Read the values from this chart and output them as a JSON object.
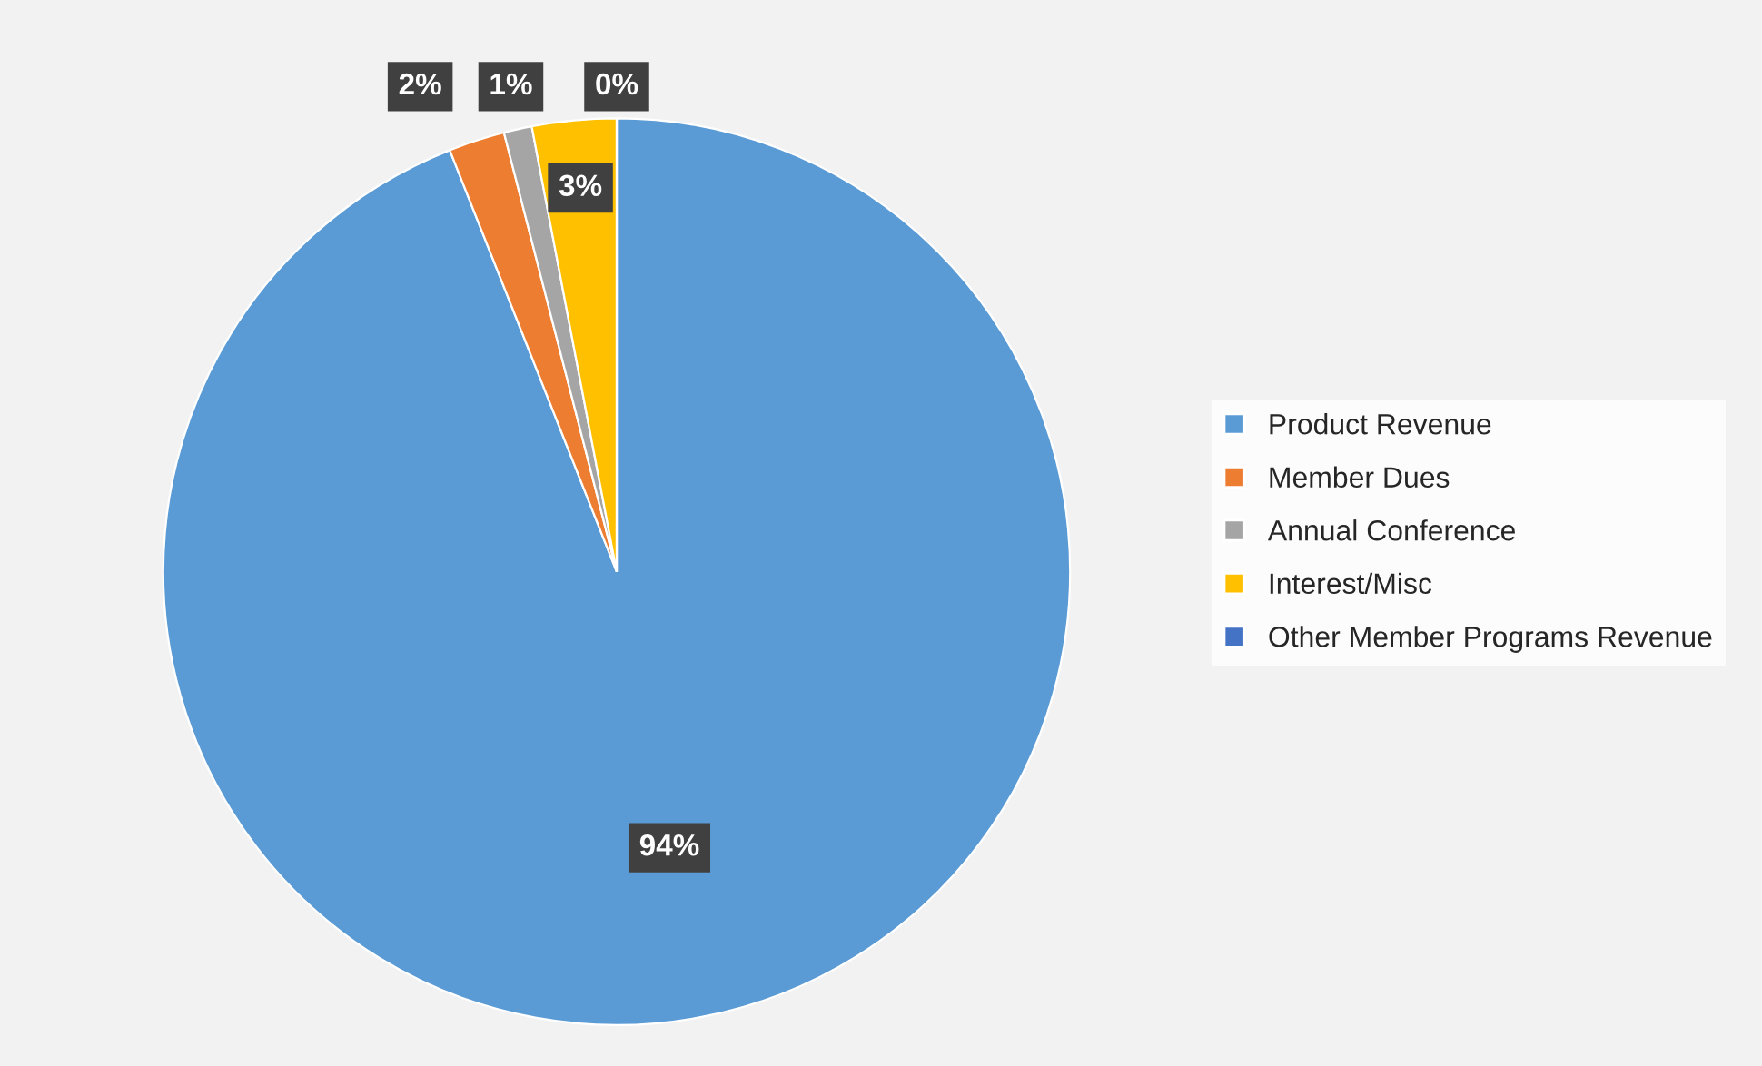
{
  "chart_data": {
    "type": "pie",
    "categories": [
      "Product Revenue",
      "Member Dues",
      "Annual Conference",
      "Interest/Misc",
      "Other Member Programs Revenue"
    ],
    "values": [
      94,
      2,
      1,
      3,
      0
    ],
    "colors": [
      "#5b9bd5",
      "#ed7d31",
      "#a5a5a5",
      "#ffc000",
      "#4472c4"
    ],
    "value_labels": [
      "94%",
      "2%",
      "1%",
      "3%",
      "0%"
    ],
    "legend": "right"
  }
}
